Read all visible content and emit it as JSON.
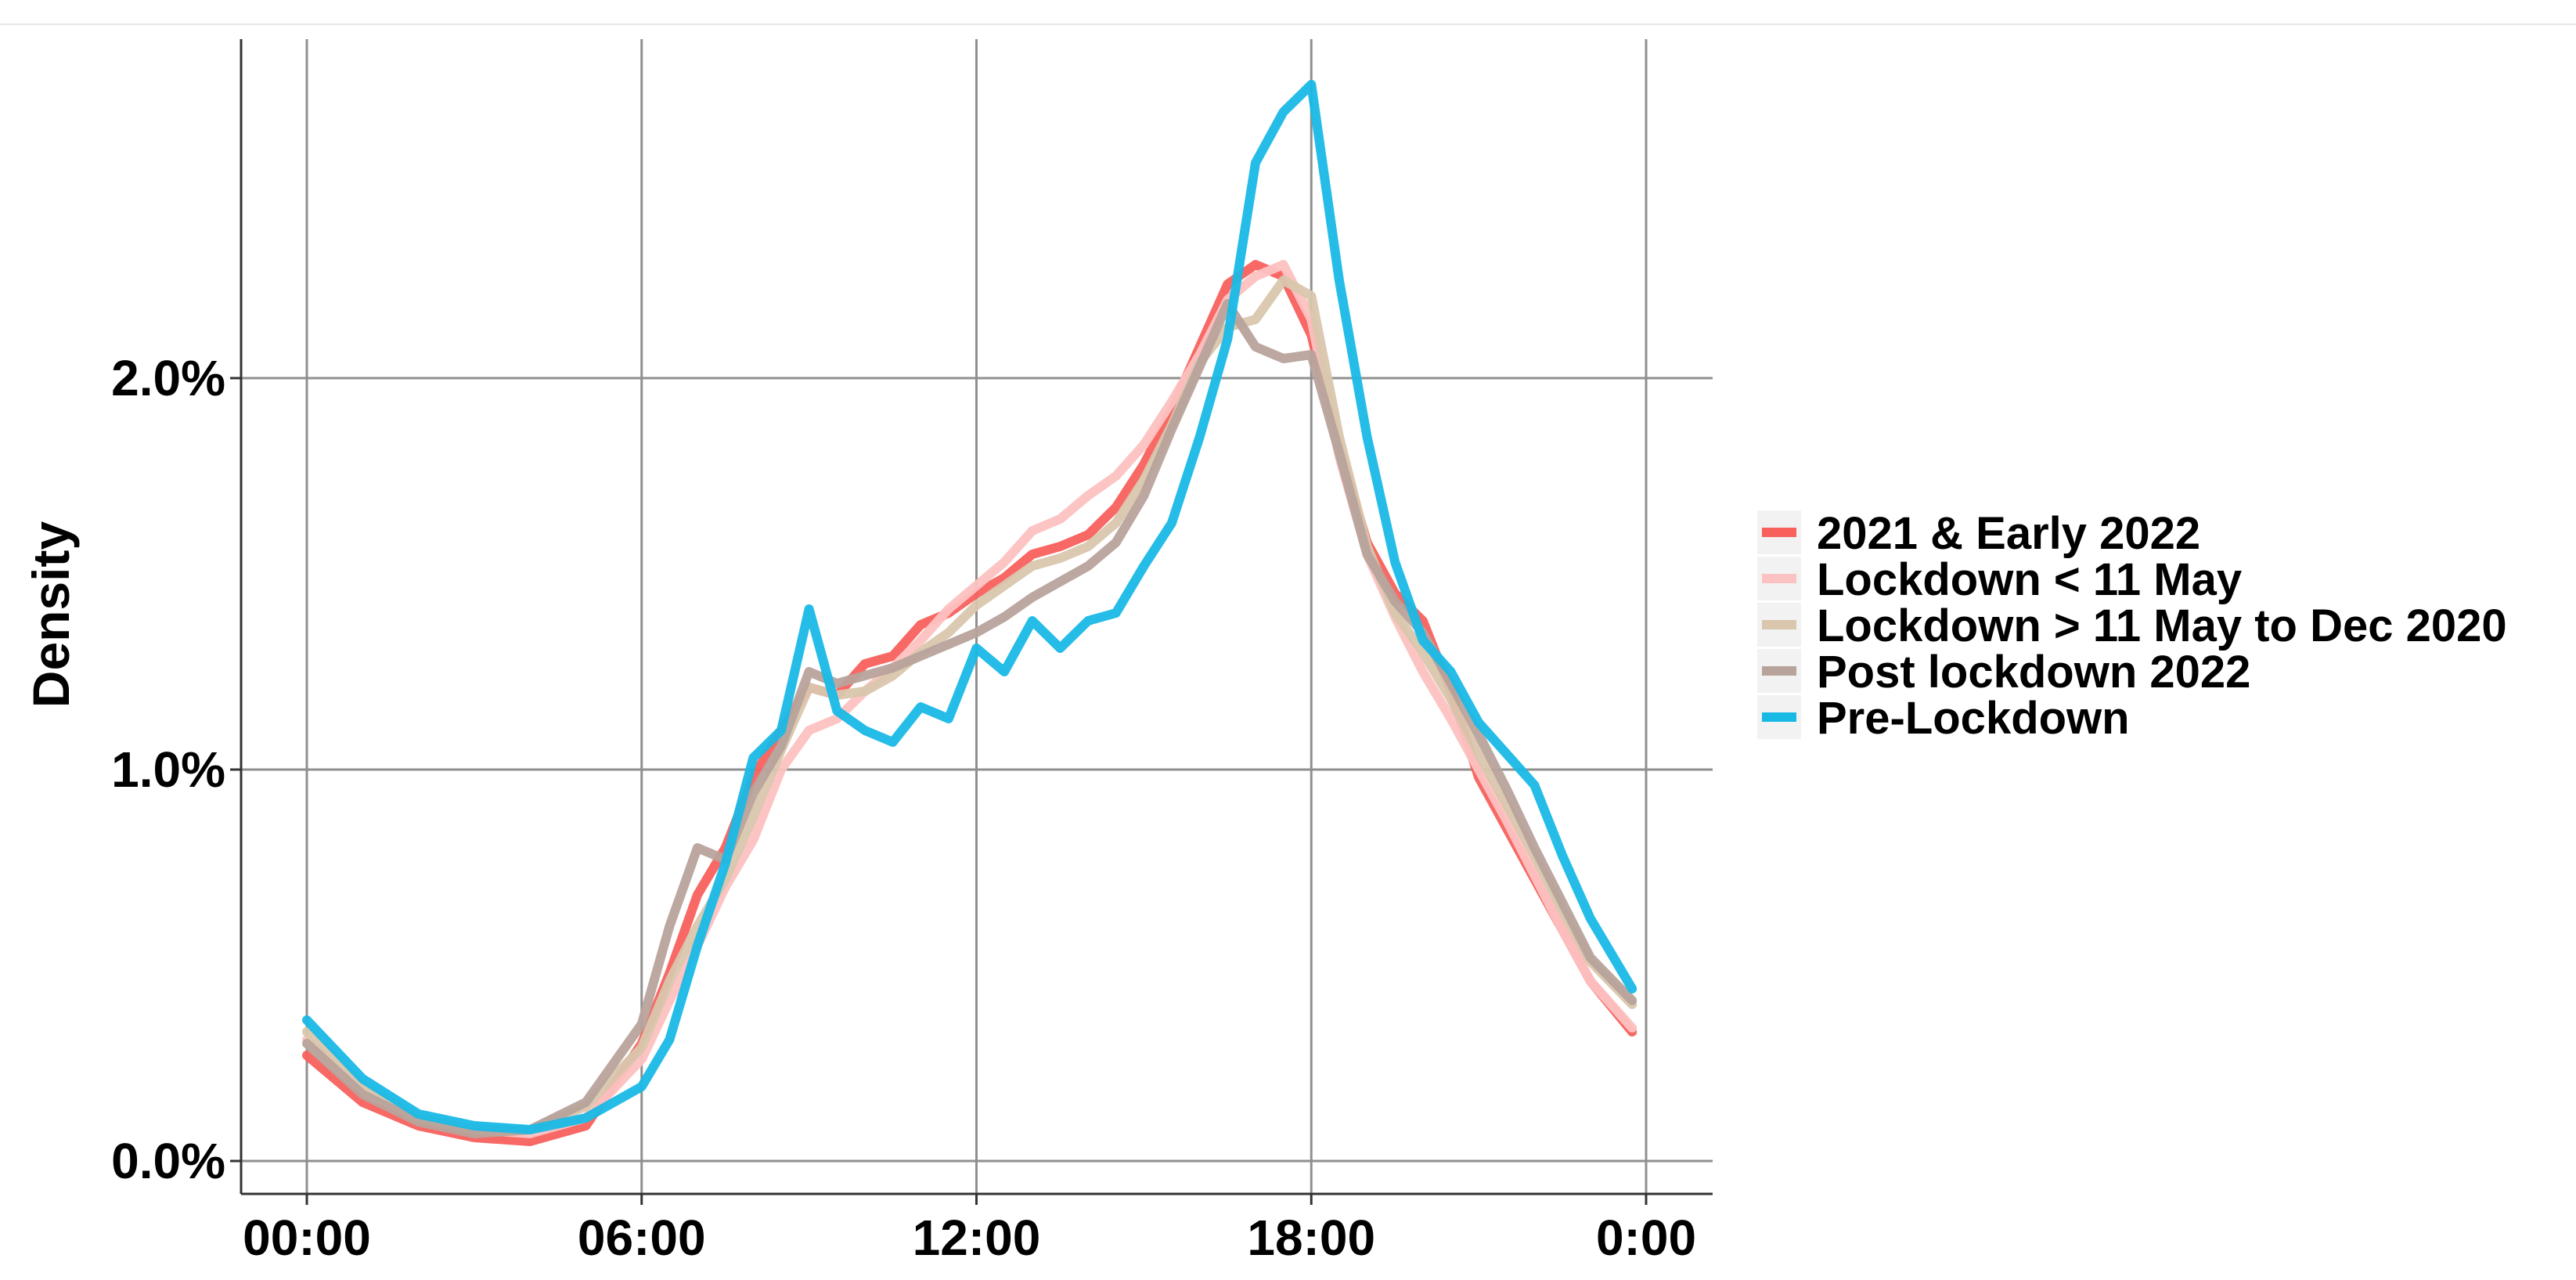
{
  "chart_data": {
    "type": "line",
    "title": "",
    "xlabel": "",
    "ylabel": "Density",
    "x_unit": "hours since midnight",
    "xlim": [
      0,
      24
    ],
    "ylim": [
      0,
      0.028
    ],
    "x_ticks": [
      0,
      6,
      12,
      18,
      24
    ],
    "x_tick_labels": [
      "00:00",
      "06:00",
      "12:00",
      "18:00",
      "0:00"
    ],
    "y_ticks": [
      0.0,
      0.01,
      0.02
    ],
    "y_tick_labels": [
      "0.0%",
      "1.0%",
      "2.0%"
    ],
    "grid": true,
    "legend_position": "right",
    "x": [
      0,
      1,
      2,
      3,
      4,
      5,
      6,
      6.5,
      7,
      7.5,
      8,
      8.5,
      9,
      9.5,
      10,
      10.5,
      11,
      11.5,
      12,
      12.5,
      13,
      13.5,
      14,
      14.5,
      15,
      15.5,
      16,
      16.5,
      17,
      17.5,
      18,
      18.5,
      19,
      19.5,
      20,
      20.5,
      21,
      21.5,
      22,
      22.5,
      23,
      23.75
    ],
    "series": [
      {
        "name": "2021 & Early 2022",
        "color": "#f8605c",
        "values": [
          0.0027,
          0.0015,
          0.0009,
          0.0006,
          0.0005,
          0.0009,
          0.003,
          0.0048,
          0.0068,
          0.008,
          0.0098,
          0.011,
          0.0121,
          0.0119,
          0.0127,
          0.0129,
          0.0137,
          0.014,
          0.0145,
          0.0149,
          0.0155,
          0.0157,
          0.016,
          0.0167,
          0.0178,
          0.0192,
          0.0208,
          0.0224,
          0.0229,
          0.0226,
          0.0211,
          0.0182,
          0.0158,
          0.0145,
          0.0138,
          0.012,
          0.0098,
          0.0085,
          0.0072,
          0.0059,
          0.0046,
          0.0033
        ]
      },
      {
        "name": "Lockdown < 11 May",
        "color": "#fcc2c1",
        "values": [
          0.0031,
          0.0018,
          0.0011,
          0.0008,
          0.0007,
          0.0011,
          0.0026,
          0.0041,
          0.0055,
          0.007,
          0.0082,
          0.01,
          0.011,
          0.0113,
          0.012,
          0.0126,
          0.0133,
          0.0141,
          0.0147,
          0.0153,
          0.0161,
          0.0164,
          0.017,
          0.0175,
          0.0183,
          0.0194,
          0.0206,
          0.022,
          0.0226,
          0.0229,
          0.0215,
          0.018,
          0.0155,
          0.0139,
          0.0125,
          0.0113,
          0.01,
          0.0087,
          0.0073,
          0.0059,
          0.0046,
          0.0034
        ]
      },
      {
        "name": "Lockdown > 11 May to Dec 2020",
        "color": "#d9c6ad",
        "values": [
          0.0033,
          0.0019,
          0.0011,
          0.0008,
          0.0008,
          0.0014,
          0.0029,
          0.0046,
          0.006,
          0.0072,
          0.0088,
          0.0105,
          0.0121,
          0.0119,
          0.012,
          0.0124,
          0.013,
          0.0135,
          0.0142,
          0.0147,
          0.0152,
          0.0154,
          0.0157,
          0.0163,
          0.0174,
          0.0188,
          0.0204,
          0.0213,
          0.0215,
          0.0225,
          0.0221,
          0.0185,
          0.0157,
          0.014,
          0.013,
          0.0118,
          0.0104,
          0.0091,
          0.0078,
          0.0064,
          0.0051,
          0.004
        ]
      },
      {
        "name": "Post lockdown 2022",
        "color": "#b8a39b",
        "values": [
          0.003,
          0.0017,
          0.001,
          0.0007,
          0.0008,
          0.0015,
          0.0035,
          0.006,
          0.008,
          0.0077,
          0.0094,
          0.0106,
          0.0125,
          0.0122,
          0.0124,
          0.0126,
          0.0129,
          0.0132,
          0.0135,
          0.0139,
          0.0144,
          0.0148,
          0.0152,
          0.0158,
          0.017,
          0.0187,
          0.0203,
          0.0219,
          0.0208,
          0.0205,
          0.0206,
          0.0181,
          0.0155,
          0.0143,
          0.0135,
          0.0122,
          0.0109,
          0.0095,
          0.008,
          0.0066,
          0.0052,
          0.0041
        ]
      },
      {
        "name": "Pre-Lockdown",
        "color": "#19b9e6",
        "values": [
          0.0036,
          0.0021,
          0.0012,
          0.0009,
          0.0008,
          0.0011,
          0.0019,
          0.0031,
          0.0055,
          0.0076,
          0.0103,
          0.011,
          0.0141,
          0.0115,
          0.011,
          0.0107,
          0.0116,
          0.0113,
          0.0131,
          0.0125,
          0.0138,
          0.0131,
          0.0138,
          0.014,
          0.0152,
          0.0163,
          0.0185,
          0.021,
          0.0255,
          0.0268,
          0.0275,
          0.0225,
          0.0185,
          0.0153,
          0.0133,
          0.0125,
          0.0112,
          0.0104,
          0.0096,
          0.0078,
          0.0062,
          0.0044
        ]
      }
    ]
  }
}
